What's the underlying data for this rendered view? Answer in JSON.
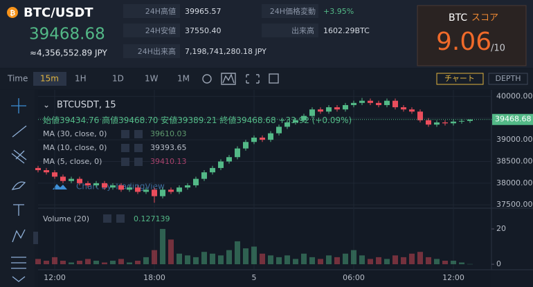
{
  "header": {
    "pair": "BTC/USDT",
    "price": "39468.68",
    "price_jpy": "≈4,356,552.89 JPY",
    "stats": [
      {
        "label": "24H高値",
        "value": "39965.57"
      },
      {
        "label": "24H安値",
        "value": "37550.40"
      },
      {
        "label": "24H出来高",
        "value": "7,198,741,280.18 JPY"
      },
      {
        "label": "24H価格変動",
        "value": "+3.95%"
      },
      {
        "label": "出来高",
        "value": "1602.29BTC"
      }
    ]
  },
  "score": {
    "coin": "BTC",
    "label": "スコア",
    "value": "9.06",
    "max": "/10"
  },
  "toolbar": {
    "time_label": "Time",
    "intervals": [
      "15m",
      "1H",
      "1D",
      "1W",
      "1M"
    ],
    "buttons": [
      "チャート",
      "DEPTH"
    ]
  },
  "chart_data": {
    "type": "candlestick",
    "symbol": "BTCUSDT, 15",
    "legend": {
      "open_label": "始値",
      "open": "39434.76",
      "high_label": "高値",
      "high": "39468.70",
      "low_label": "安値",
      "low": "39389.21",
      "close_label": "終値",
      "close": "39468.68",
      "change": "+33.92 (+0.09%)"
    },
    "indicators": [
      {
        "name": "MA (30, close, 0)",
        "value": "39610.03",
        "color": "#5f9a6e"
      },
      {
        "name": "MA (10, close, 0)",
        "value": "39393.65",
        "color": "#b8bec8"
      },
      {
        "name": "MA (5, close, 0)",
        "value": "39410.13",
        "color": "#a8426c"
      }
    ],
    "volume_label": "Volume (20)",
    "volume_value": "0.127139",
    "watermark": "Chart by TradingView",
    "categories": [
      null,
      null,
      "12:00",
      null,
      null,
      null,
      null,
      null,
      null,
      null,
      null,
      null,
      null,
      null,
      "18:00",
      null,
      null,
      null,
      null,
      null,
      null,
      null,
      null,
      null,
      null,
      null,
      "5",
      null,
      null,
      null,
      null,
      null,
      null,
      null,
      null,
      null,
      null,
      null,
      "06:00",
      null,
      null,
      null,
      null,
      null,
      null,
      null,
      null,
      null,
      null,
      null,
      "12:00",
      null,
      null
    ],
    "open": [
      38350,
      38300,
      38250,
      38150,
      38050,
      38100,
      38000,
      37950,
      38000,
      37900,
      37950,
      37850,
      37900,
      37800,
      37850,
      37700,
      37850,
      37800,
      37900,
      37950,
      38100,
      38250,
      38350,
      38500,
      38600,
      38800,
      38950,
      39050,
      39000,
      39150,
      39300,
      39400,
      39450,
      39550,
      39700,
      39650,
      39750,
      39700,
      39800,
      39850,
      39900,
      39850,
      39800,
      39900,
      39750,
      39700,
      39650,
      39450,
      39350,
      39400,
      39380,
      39420,
      39434.76
    ],
    "high": [
      38400,
      38350,
      38300,
      38200,
      38150,
      38150,
      38050,
      38050,
      38050,
      38000,
      38000,
      37950,
      37950,
      37900,
      37900,
      37900,
      37900,
      37950,
      38000,
      38150,
      38300,
      38400,
      38550,
      38650,
      38850,
      39000,
      39100,
      39100,
      39200,
      39350,
      39450,
      39500,
      39600,
      39750,
      39750,
      39800,
      39800,
      39850,
      39900,
      39965.57,
      39950,
      39900,
      39950,
      39950,
      39800,
      39750,
      39700,
      39500,
      39450,
      39450,
      39470,
      39480,
      39468.7
    ],
    "low": [
      38250,
      38200,
      38100,
      38000,
      38000,
      37950,
      37900,
      37900,
      37850,
      37850,
      37800,
      37800,
      37750,
      37750,
      37550.4,
      37650,
      37750,
      37750,
      37850,
      37900,
      38050,
      38200,
      38300,
      38450,
      38550,
      38750,
      38900,
      38950,
      38950,
      39100,
      39250,
      39350,
      39400,
      39500,
      39600,
      39600,
      39650,
      39650,
      39750,
      39800,
      39800,
      39750,
      39750,
      39700,
      39650,
      39600,
      39400,
      39300,
      39300,
      39330,
      39330,
      39370,
      39389.21
    ],
    "close": [
      38300,
      38250,
      38150,
      38050,
      38100,
      38000,
      37950,
      38000,
      37900,
      37950,
      37850,
      37900,
      37800,
      37850,
      37700,
      37850,
      37800,
      37900,
      37950,
      38100,
      38250,
      38350,
      38500,
      38600,
      38800,
      38950,
      39050,
      39000,
      39150,
      39300,
      39400,
      39450,
      39550,
      39700,
      39650,
      39750,
      39700,
      39800,
      39850,
      39900,
      39850,
      39800,
      39900,
      39750,
      39700,
      39650,
      39450,
      39350,
      39400,
      39380,
      39420,
      39434.76,
      39468.68
    ],
    "volume": [
      3,
      2,
      4,
      2,
      1,
      2,
      3,
      2,
      1,
      2,
      3,
      1,
      2,
      4,
      8,
      20,
      14,
      6,
      5,
      4,
      7,
      6,
      5,
      8,
      13,
      9,
      10,
      6,
      5,
      4,
      5,
      3,
      6,
      4,
      3,
      5,
      4,
      6,
      8,
      5,
      3,
      4,
      3,
      5,
      4,
      6,
      7,
      4,
      3,
      2,
      2,
      1,
      0.127139
    ],
    "up_color": "#53b987",
    "down_color": "#eb4d5c",
    "ylim": [
      37440,
      40150
    ],
    "yticks": [
      {
        "value": 37500,
        "label": "37500.00"
      },
      {
        "value": 38000,
        "label": "38000.00"
      },
      {
        "value": 38500,
        "label": "38500.00"
      },
      {
        "value": 39000,
        "label": "39000.00"
      },
      {
        "value": 39500,
        "label": "39500.00"
      },
      {
        "value": 40000,
        "label": "40000.00"
      }
    ],
    "last_price": 39468.68,
    "vol_ylim": [
      -3.1,
      30.2
    ],
    "vol_yticks": [
      0,
      20
    ],
    "grid": true
  }
}
